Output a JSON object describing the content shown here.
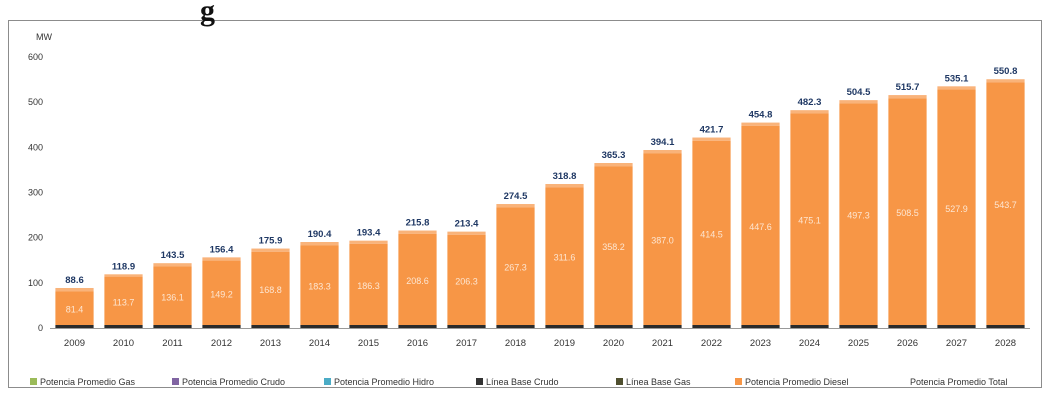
{
  "header": {
    "partial_title": "g"
  },
  "chart_data": {
    "type": "bar",
    "ylabel": "MW",
    "ylim": [
      0,
      600
    ],
    "yticks": [
      "0",
      "100",
      "200",
      "300",
      "400",
      "500",
      "600"
    ],
    "categories": [
      "2009",
      "2010",
      "2011",
      "2012",
      "2013",
      "2014",
      "2015",
      "2016",
      "2017",
      "2018",
      "2019",
      "2020",
      "2021",
      "2022",
      "2023",
      "2024",
      "2025",
      "2026",
      "2027",
      "2028"
    ],
    "series": [
      {
        "name": "Potencia Promedio Diesel",
        "color": "#f79646",
        "values": [
          81.4,
          113.7,
          136.1,
          149.2,
          168.8,
          183.3,
          186.3,
          208.6,
          206.3,
          267.3,
          311.6,
          358.2,
          387.0,
          414.5,
          447.6,
          475.1,
          497.3,
          508.5,
          527.9,
          543.7
        ],
        "labels": [
          "81.4",
          "113.7",
          "136.1",
          "149.2",
          "168.8",
          "183.3",
          "186.3",
          "208.6",
          "206.3",
          "267.3",
          "311.6",
          "358.2",
          "387.0",
          "414.5",
          "447.6",
          "475.1",
          "497.3",
          "508.5",
          "527.9",
          "543.7"
        ]
      },
      {
        "name": "Potencia Promedio Total",
        "color": "#1f3864",
        "values": [
          88.6,
          118.9,
          143.5,
          156.4,
          175.9,
          190.4,
          193.4,
          215.8,
          213.4,
          274.5,
          318.8,
          365.3,
          394.1,
          421.7,
          454.8,
          482.3,
          504.5,
          515.7,
          535.1,
          550.8
        ],
        "labels": [
          "88.6",
          "118.9",
          "143.5",
          "156.4",
          "175.9",
          "190.4",
          "193.4",
          "215.8",
          "213.4",
          "274.5",
          "318.8",
          "365.3",
          "394.1",
          "421.7",
          "454.8",
          "482.3",
          "504.5",
          "515.7",
          "535.1",
          "550.8"
        ]
      }
    ],
    "legend": [
      {
        "label": "Potencia Promedio Gas",
        "color": "#9bbb59"
      },
      {
        "label": "Potencia Promedio Crudo",
        "color": "#8064a2"
      },
      {
        "label": "Potencia Promedio Hidro",
        "color": "#4bacc6"
      },
      {
        "label": "Línea Base Crudo",
        "color": "#333333"
      },
      {
        "label": "Línea Base Gas",
        "color": "#4f4f2f"
      },
      {
        "label": "Potencia Promedio Diesel",
        "color": "#f79646"
      },
      {
        "label": "Potencia Promedio Total",
        "color": ""
      }
    ],
    "legend_position": "bottom",
    "grid": false
  }
}
